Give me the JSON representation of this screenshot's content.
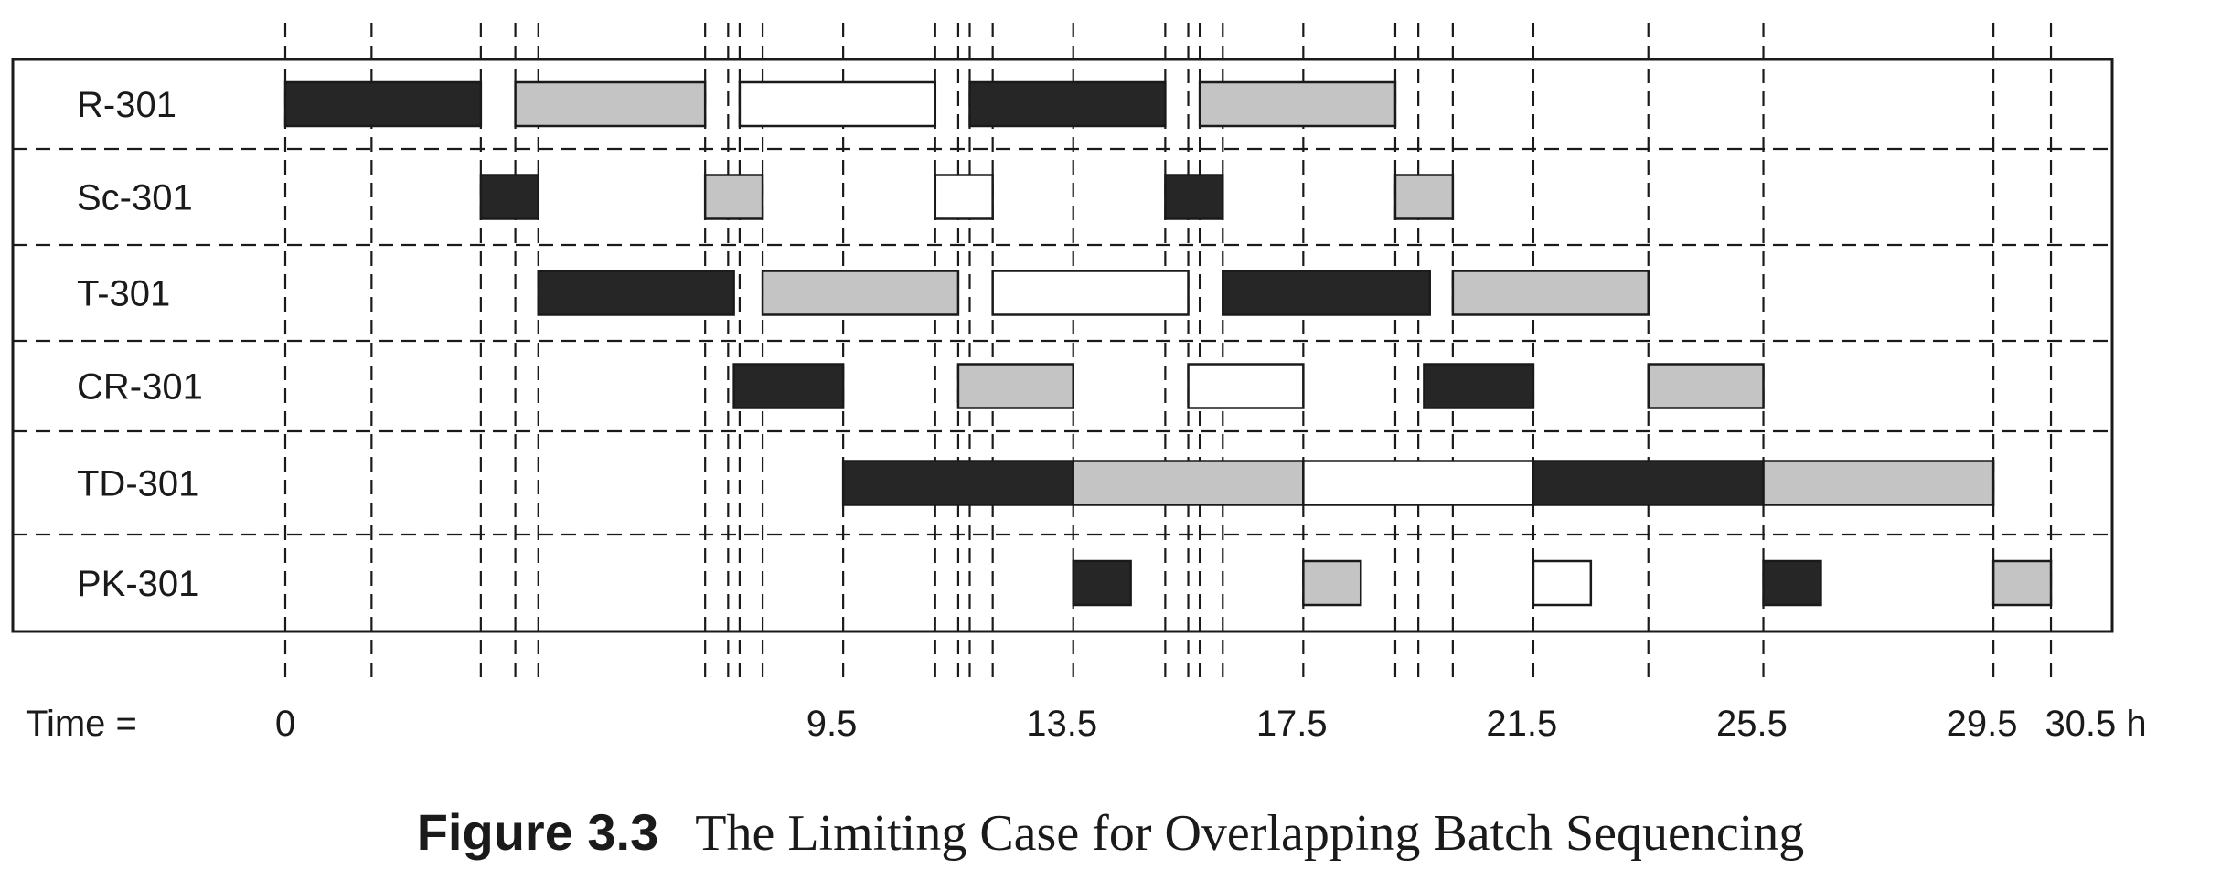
{
  "chart_data": {
    "type": "gantt",
    "units": [
      "R-301",
      "Sc-301",
      "T-301",
      "CR-301",
      "TD-301",
      "PK-301"
    ],
    "time_label": "Time =",
    "time_unit": "h",
    "tick_labels": [
      "0",
      "9.5",
      "13.5",
      "17.5",
      "21.5",
      "25.5",
      "29.5",
      "30.5 h"
    ],
    "tick_values": [
      0,
      9.5,
      13.5,
      17.5,
      21.5,
      25.5,
      29.5,
      30.5
    ],
    "xlim": [
      0,
      30.5
    ],
    "event_times": [
      0,
      1.5,
      3.4,
      4.0,
      4.4,
      7.3,
      7.7,
      7.9,
      8.3,
      9.7,
      11.3,
      11.7,
      11.9,
      12.3,
      13.7,
      15.3,
      15.7,
      15.9,
      16.3,
      17.7,
      19.3,
      19.7,
      20.3,
      21.7,
      23.7,
      25.7,
      29.7,
      30.7
    ],
    "batch_colors": {
      "dark": "#262626",
      "light": "#c4c4c4",
      "white": "#ffffff"
    },
    "bars": [
      {
        "unit": "R-301",
        "start": 0.0,
        "end": 3.4,
        "batch": "dark"
      },
      {
        "unit": "R-301",
        "start": 4.0,
        "end": 7.3,
        "batch": "light"
      },
      {
        "unit": "R-301",
        "start": 7.9,
        "end": 11.3,
        "batch": "white"
      },
      {
        "unit": "R-301",
        "start": 11.9,
        "end": 15.3,
        "batch": "dark"
      },
      {
        "unit": "R-301",
        "start": 15.9,
        "end": 19.3,
        "batch": "light"
      },
      {
        "unit": "Sc-301",
        "start": 3.4,
        "end": 4.4,
        "batch": "dark"
      },
      {
        "unit": "Sc-301",
        "start": 7.3,
        "end": 8.3,
        "batch": "light"
      },
      {
        "unit": "Sc-301",
        "start": 11.3,
        "end": 12.3,
        "batch": "white"
      },
      {
        "unit": "Sc-301",
        "start": 15.3,
        "end": 16.3,
        "batch": "dark"
      },
      {
        "unit": "Sc-301",
        "start": 19.3,
        "end": 20.3,
        "batch": "light"
      },
      {
        "unit": "T-301",
        "start": 4.4,
        "end": 7.8,
        "batch": "dark"
      },
      {
        "unit": "T-301",
        "start": 8.3,
        "end": 11.7,
        "batch": "light"
      },
      {
        "unit": "T-301",
        "start": 12.3,
        "end": 15.7,
        "batch": "white"
      },
      {
        "unit": "T-301",
        "start": 16.3,
        "end": 19.9,
        "batch": "dark"
      },
      {
        "unit": "T-301",
        "start": 20.3,
        "end": 23.7,
        "batch": "light"
      },
      {
        "unit": "CR-301",
        "start": 7.8,
        "end": 9.7,
        "batch": "dark"
      },
      {
        "unit": "CR-301",
        "start": 11.7,
        "end": 13.7,
        "batch": "light"
      },
      {
        "unit": "CR-301",
        "start": 15.7,
        "end": 17.7,
        "batch": "white"
      },
      {
        "unit": "CR-301",
        "start": 19.8,
        "end": 21.7,
        "batch": "dark"
      },
      {
        "unit": "CR-301",
        "start": 23.7,
        "end": 25.7,
        "batch": "light"
      },
      {
        "unit": "TD-301",
        "start": 9.7,
        "end": 13.7,
        "batch": "dark"
      },
      {
        "unit": "TD-301",
        "start": 13.7,
        "end": 17.7,
        "batch": "light"
      },
      {
        "unit": "TD-301",
        "start": 17.7,
        "end": 21.7,
        "batch": "white"
      },
      {
        "unit": "TD-301",
        "start": 21.7,
        "end": 25.7,
        "batch": "dark"
      },
      {
        "unit": "TD-301",
        "start": 25.7,
        "end": 29.7,
        "batch": "light"
      },
      {
        "unit": "PK-301",
        "start": 13.7,
        "end": 14.7,
        "batch": "dark"
      },
      {
        "unit": "PK-301",
        "start": 17.7,
        "end": 18.7,
        "batch": "light"
      },
      {
        "unit": "PK-301",
        "start": 21.7,
        "end": 22.7,
        "batch": "white"
      },
      {
        "unit": "PK-301",
        "start": 25.7,
        "end": 26.7,
        "batch": "dark"
      },
      {
        "unit": "PK-301",
        "start": 29.7,
        "end": 30.7,
        "batch": "light"
      }
    ]
  },
  "caption": {
    "figure_number": "Figure 3.3",
    "text": "The Limiting Case for Overlapping Batch Sequencing"
  }
}
